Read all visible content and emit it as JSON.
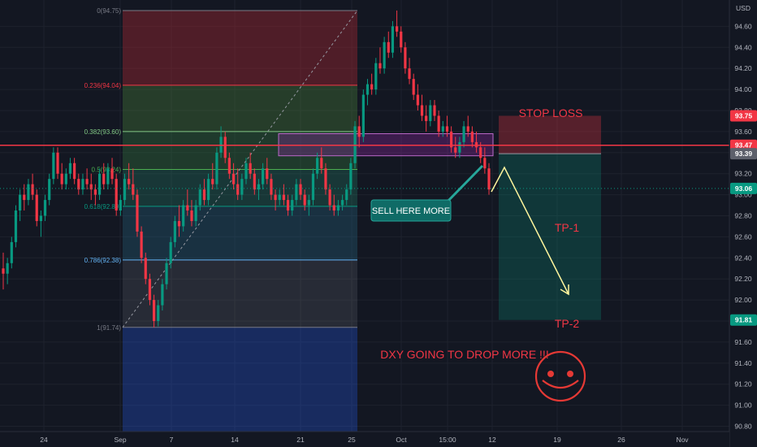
{
  "chart_data": {
    "type": "candlestick",
    "currency": "USD",
    "ylim": [
      90.75,
      94.85
    ],
    "y_ticks": [
      "94.60",
      "94.40",
      "94.20",
      "94.00",
      "93.80",
      "93.60",
      "93.40",
      "93.20",
      "93.00",
      "92.80",
      "92.60",
      "92.40",
      "92.20",
      "92.00",
      "91.80",
      "91.60",
      "91.40",
      "91.20",
      "91.00",
      "90.80"
    ],
    "x_ticks": [
      "24",
      "Sep",
      "7",
      "14",
      "21",
      "25",
      "Oct",
      "15:00",
      "12",
      "19",
      "26",
      "Nov"
    ],
    "price_badges": [
      {
        "label": "93.75",
        "color": "#f23645"
      },
      {
        "label": "93.47",
        "color": "#f23645"
      },
      {
        "label": "93.39",
        "color": "#5d606b"
      },
      {
        "label": "93.06",
        "color": "#089981"
      },
      {
        "label": "91.81",
        "color": "#089981"
      }
    ],
    "fibonacci_levels": [
      {
        "label": "0(94.75)",
        "price": 94.75
      },
      {
        "label": "0.236(94.04)",
        "price": 94.04
      },
      {
        "label": "0.382(93.60)",
        "price": 93.6
      },
      {
        "label": "0.5(93.24)",
        "price": 93.24
      },
      {
        "label": "0.618(92.89)",
        "price": 92.89
      },
      {
        "label": "0.786(92.38)",
        "price": 92.38
      },
      {
        "label": "1(91.74)",
        "price": 91.74
      }
    ],
    "annotations": {
      "stop_loss": "STOP LOSS",
      "tp1": "TP-1",
      "tp2": "TP-2",
      "sell_here": "SELL HERE MORE",
      "headline": "DXY GOING TO DROP MORE !!!"
    },
    "position": {
      "entry": 93.39,
      "stop": 93.75,
      "target": 91.81
    },
    "horizontal_line": 93.47,
    "current_price": 93.06,
    "candles": [
      [
        92.3,
        92.45,
        92.1,
        92.25
      ],
      [
        92.25,
        92.4,
        92.15,
        92.35
      ],
      [
        92.35,
        92.6,
        92.3,
        92.55
      ],
      [
        92.55,
        92.9,
        92.5,
        92.85
      ],
      [
        92.85,
        93.05,
        92.75,
        93.0
      ],
      [
        93.0,
        93.1,
        92.85,
        92.95
      ],
      [
        92.95,
        93.15,
        92.9,
        93.1
      ],
      [
        93.1,
        93.2,
        92.95,
        93.0
      ],
      [
        93.0,
        93.05,
        92.7,
        92.75
      ],
      [
        92.75,
        92.85,
        92.6,
        92.8
      ],
      [
        92.8,
        93.0,
        92.75,
        92.95
      ],
      [
        92.95,
        93.2,
        92.9,
        93.15
      ],
      [
        93.15,
        93.45,
        93.1,
        93.4
      ],
      [
        93.4,
        93.45,
        93.15,
        93.2
      ],
      [
        93.2,
        93.3,
        93.05,
        93.1
      ],
      [
        93.1,
        93.25,
        93.05,
        93.2
      ],
      [
        93.2,
        93.35,
        93.15,
        93.3
      ],
      [
        93.3,
        93.35,
        93.1,
        93.15
      ],
      [
        93.15,
        93.2,
        93.0,
        93.05
      ],
      [
        93.05,
        93.2,
        93.0,
        93.15
      ],
      [
        93.15,
        93.25,
        93.05,
        93.1
      ],
      [
        93.1,
        93.2,
        92.95,
        93.05
      ],
      [
        93.05,
        93.1,
        92.9,
        93.0
      ],
      [
        93.0,
        93.25,
        92.95,
        93.2
      ],
      [
        93.2,
        93.3,
        93.05,
        93.1
      ],
      [
        93.1,
        93.3,
        93.05,
        93.25
      ],
      [
        93.25,
        93.35,
        93.1,
        93.15
      ],
      [
        93.15,
        93.2,
        92.8,
        92.85
      ],
      [
        92.85,
        93.0,
        92.8,
        92.95
      ],
      [
        92.95,
        93.2,
        92.9,
        93.15
      ],
      [
        93.15,
        93.3,
        93.05,
        93.1
      ],
      [
        93.1,
        93.25,
        92.95,
        93.0
      ],
      [
        93.0,
        93.05,
        92.6,
        92.65
      ],
      [
        92.65,
        92.7,
        92.35,
        92.4
      ],
      [
        92.4,
        92.45,
        92.15,
        92.2
      ],
      [
        92.2,
        92.25,
        91.95,
        92.0
      ],
      [
        92.0,
        92.05,
        91.74,
        91.8
      ],
      [
        91.8,
        92.0,
        91.75,
        91.95
      ],
      [
        91.95,
        92.2,
        91.9,
        92.15
      ],
      [
        92.15,
        92.4,
        92.1,
        92.35
      ],
      [
        92.35,
        92.6,
        92.3,
        92.55
      ],
      [
        92.55,
        92.8,
        92.5,
        92.75
      ],
      [
        92.75,
        92.9,
        92.6,
        92.7
      ],
      [
        92.7,
        92.95,
        92.65,
        92.9
      ],
      [
        92.9,
        93.05,
        92.8,
        92.85
      ],
      [
        92.85,
        92.95,
        92.7,
        92.75
      ],
      [
        92.75,
        92.95,
        92.7,
        92.9
      ],
      [
        92.9,
        93.1,
        92.85,
        93.05
      ],
      [
        93.05,
        93.15,
        92.9,
        92.95
      ],
      [
        92.95,
        93.2,
        92.9,
        93.15
      ],
      [
        93.15,
        93.3,
        93.05,
        93.1
      ],
      [
        93.1,
        93.45,
        93.05,
        93.4
      ],
      [
        93.4,
        93.65,
        93.35,
        93.55
      ],
      [
        93.55,
        93.6,
        93.3,
        93.35
      ],
      [
        93.35,
        93.4,
        93.15,
        93.2
      ],
      [
        93.2,
        93.3,
        93.05,
        93.1
      ],
      [
        93.1,
        93.25,
        92.95,
        93.0
      ],
      [
        93.0,
        93.2,
        92.95,
        93.15
      ],
      [
        93.15,
        93.35,
        93.1,
        93.3
      ],
      [
        93.3,
        93.4,
        93.15,
        93.2
      ],
      [
        93.2,
        93.25,
        93.0,
        93.05
      ],
      [
        93.05,
        93.15,
        92.95,
        93.1
      ],
      [
        93.1,
        93.3,
        93.05,
        93.25
      ],
      [
        93.25,
        93.35,
        93.1,
        93.15
      ],
      [
        93.15,
        93.2,
        92.95,
        93.0
      ],
      [
        93.0,
        93.05,
        92.85,
        92.95
      ],
      [
        92.95,
        93.05,
        92.9,
        93.0
      ],
      [
        93.0,
        93.1,
        92.9,
        92.95
      ],
      [
        92.95,
        93.0,
        92.8,
        92.85
      ],
      [
        92.85,
        93.0,
        92.8,
        92.95
      ],
      [
        92.95,
        93.15,
        92.9,
        93.1
      ],
      [
        93.1,
        93.15,
        92.95,
        93.0
      ],
      [
        93.0,
        93.05,
        92.85,
        92.9
      ],
      [
        92.9,
        93.0,
        92.8,
        92.95
      ],
      [
        92.95,
        93.25,
        92.9,
        93.2
      ],
      [
        93.2,
        93.4,
        93.15,
        93.35
      ],
      [
        93.35,
        93.45,
        93.2,
        93.25
      ],
      [
        93.25,
        93.3,
        93.0,
        93.05
      ],
      [
        93.05,
        93.1,
        92.85,
        92.9
      ],
      [
        92.9,
        93.0,
        92.8,
        92.85
      ],
      [
        92.85,
        92.95,
        92.8,
        92.9
      ],
      [
        92.9,
        93.0,
        92.85,
        92.95
      ],
      [
        92.95,
        93.1,
        92.9,
        93.05
      ],
      [
        93.05,
        93.35,
        93.0,
        93.3
      ],
      [
        93.3,
        93.7,
        93.25,
        93.65
      ],
      [
        93.65,
        93.75,
        93.45,
        93.55
      ],
      [
        93.55,
        94.0,
        93.5,
        93.95
      ],
      [
        93.95,
        94.1,
        93.85,
        94.05
      ],
      [
        94.05,
        94.15,
        93.95,
        94.0
      ],
      [
        94.0,
        94.3,
        93.95,
        94.25
      ],
      [
        94.25,
        94.4,
        94.15,
        94.2
      ],
      [
        94.2,
        94.5,
        94.15,
        94.45
      ],
      [
        94.45,
        94.55,
        94.3,
        94.35
      ],
      [
        94.35,
        94.65,
        94.3,
        94.6
      ],
      [
        94.6,
        94.75,
        94.5,
        94.55
      ],
      [
        94.55,
        94.6,
        94.35,
        94.4
      ],
      [
        94.4,
        94.45,
        94.15,
        94.2
      ],
      [
        94.2,
        94.3,
        94.05,
        94.1
      ],
      [
        94.1,
        94.15,
        93.9,
        93.95
      ],
      [
        93.95,
        94.05,
        93.8,
        93.85
      ],
      [
        93.85,
        93.95,
        93.7,
        93.75
      ],
      [
        93.75,
        93.85,
        93.6,
        93.7
      ],
      [
        93.7,
        93.9,
        93.65,
        93.85
      ],
      [
        93.85,
        93.9,
        93.7,
        93.75
      ],
      [
        93.75,
        93.8,
        93.55,
        93.6
      ],
      [
        93.6,
        93.7,
        93.55,
        93.65
      ],
      [
        93.65,
        93.75,
        93.55,
        93.6
      ],
      [
        93.6,
        93.65,
        93.4,
        93.45
      ],
      [
        93.45,
        93.55,
        93.35,
        93.4
      ],
      [
        93.4,
        93.55,
        93.35,
        93.5
      ],
      [
        93.5,
        93.7,
        93.45,
        93.65
      ],
      [
        93.65,
        93.75,
        93.55,
        93.6
      ],
      [
        93.6,
        93.65,
        93.45,
        93.5
      ],
      [
        93.5,
        93.6,
        93.4,
        93.45
      ],
      [
        93.45,
        93.5,
        93.3,
        93.35
      ],
      [
        93.35,
        93.45,
        93.2,
        93.25
      ],
      [
        93.25,
        93.3,
        93.0,
        93.05
      ]
    ]
  }
}
